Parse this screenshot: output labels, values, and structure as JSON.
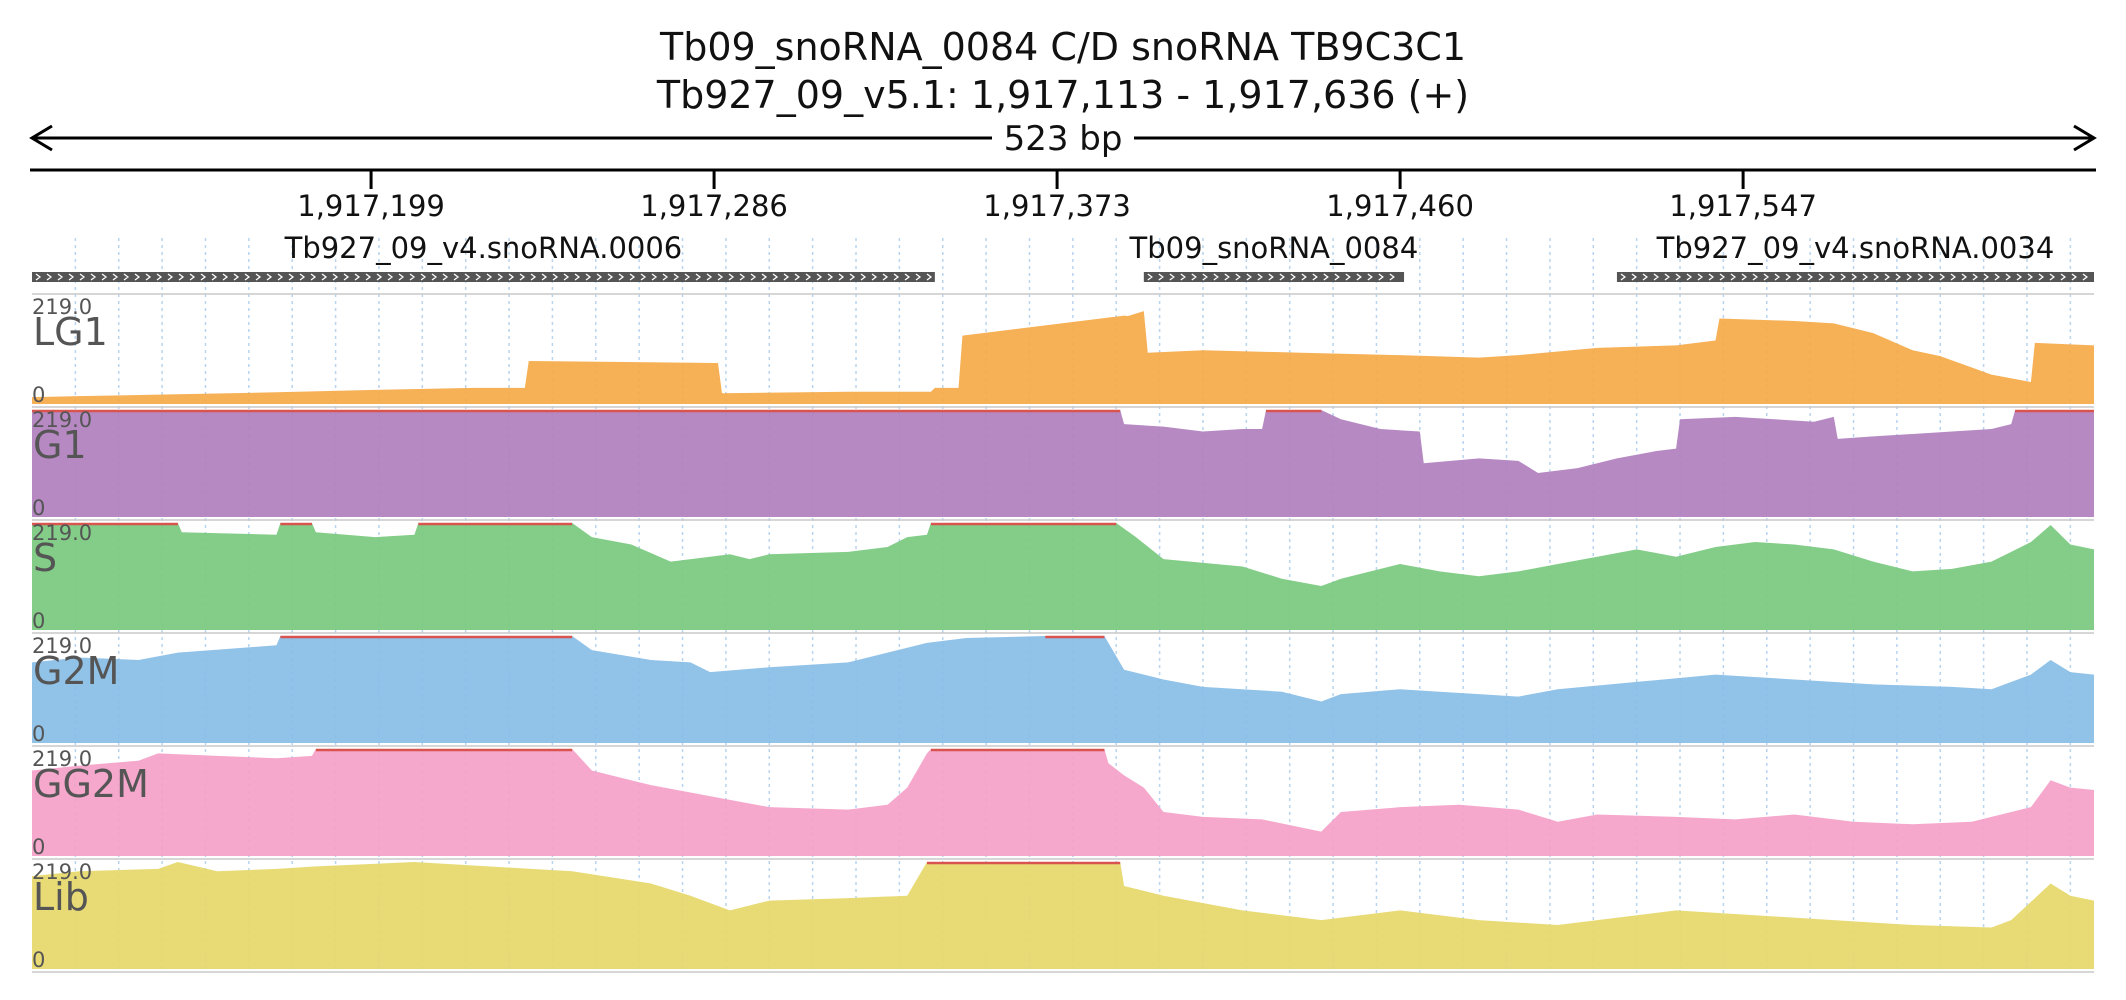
{
  "header": {
    "title_line1": "Tb09_snoRNA_0084  C/D snoRNA  TB9C3C1",
    "title_line2": "Tb927_09_v5.1: 1,917,113 - 1,917,636 (+)",
    "span_label": "523 bp"
  },
  "chart_data": {
    "type": "area",
    "region": {
      "chrom": "Tb927_09_v5.1",
      "start": 1917113,
      "end": 1917636,
      "strand": "+"
    },
    "axis_ticks": [
      {
        "pos": 1917199,
        "label": "1,917,199"
      },
      {
        "pos": 1917286,
        "label": "1,917,286"
      },
      {
        "pos": 1917373,
        "label": "1,917,373"
      },
      {
        "pos": 1917460,
        "label": "1,917,460"
      },
      {
        "pos": 1917547,
        "label": "1,917,547"
      }
    ],
    "features": [
      {
        "name": "Tb927_09_v4.snoRNA.0006",
        "start": 1917113,
        "end": 1917342
      },
      {
        "name": "Tb09_snoRNA_0084",
        "start": 1917395,
        "end": 1917461
      },
      {
        "name": "Tb927_09_v4.snoRNA.0034",
        "start": 1917515,
        "end": 1917636
      }
    ],
    "tracks": [
      {
        "name": "LG1",
        "color": "#f5a947",
        "max": "219.0",
        "min": "0",
        "ymax": 219,
        "points": [
          [
            1917113,
            14
          ],
          [
            1917125,
            16
          ],
          [
            1917150,
            20
          ],
          [
            1917175,
            24
          ],
          [
            1917200,
            29
          ],
          [
            1917225,
            33
          ],
          [
            1917238,
            33
          ],
          [
            1917239,
            88
          ],
          [
            1917287,
            84
          ],
          [
            1917288,
            22
          ],
          [
            1917320,
            25
          ],
          [
            1917341,
            25
          ],
          [
            1917342,
            33
          ],
          [
            1917348,
            33
          ],
          [
            1917349,
            140
          ],
          [
            1917390,
            181
          ],
          [
            1917391,
            180
          ],
          [
            1917395,
            190
          ],
          [
            1917396,
            105
          ],
          [
            1917410,
            110
          ],
          [
            1917435,
            105
          ],
          [
            1917460,
            100
          ],
          [
            1917480,
            95
          ],
          [
            1917490,
            100
          ],
          [
            1917510,
            115
          ],
          [
            1917530,
            120
          ],
          [
            1917540,
            130
          ],
          [
            1917541,
            175
          ],
          [
            1917560,
            170
          ],
          [
            1917570,
            165
          ],
          [
            1917580,
            145
          ],
          [
            1917590,
            110
          ],
          [
            1917597,
            98
          ],
          [
            1917610,
            60
          ],
          [
            1917620,
            45
          ],
          [
            1917621,
            125
          ],
          [
            1917636,
            120
          ]
        ]
      },
      {
        "name": "G1",
        "color": "#b07fbe",
        "max": "219.0",
        "min": "0",
        "ymax": 219,
        "points": [
          [
            1917113,
            219
          ],
          [
            1917389,
            219
          ],
          [
            1917390,
            190
          ],
          [
            1917400,
            185
          ],
          [
            1917410,
            175
          ],
          [
            1917420,
            180
          ],
          [
            1917425,
            180
          ],
          [
            1917426,
            219
          ],
          [
            1917440,
            219
          ],
          [
            1917445,
            200
          ],
          [
            1917450,
            190
          ],
          [
            1917455,
            180
          ],
          [
            1917465,
            175
          ],
          [
            1917466,
            110
          ],
          [
            1917480,
            120
          ],
          [
            1917490,
            115
          ],
          [
            1917495,
            90
          ],
          [
            1917505,
            100
          ],
          [
            1917515,
            120
          ],
          [
            1917525,
            135
          ],
          [
            1917530,
            140
          ],
          [
            1917531,
            200
          ],
          [
            1917545,
            205
          ],
          [
            1917555,
            200
          ],
          [
            1917565,
            195
          ],
          [
            1917570,
            205
          ],
          [
            1917571,
            160
          ],
          [
            1917580,
            165
          ],
          [
            1917590,
            170
          ],
          [
            1917600,
            175
          ],
          [
            1917610,
            180
          ],
          [
            1917615,
            190
          ],
          [
            1917616,
            219
          ],
          [
            1917636,
            219
          ]
        ]
      },
      {
        "name": "S",
        "color": "#78c97e",
        "max": "219.0",
        "min": "0",
        "ymax": 219,
        "points": [
          [
            1917113,
            219
          ],
          [
            1917150,
            219
          ],
          [
            1917151,
            200
          ],
          [
            1917175,
            195
          ],
          [
            1917176,
            219
          ],
          [
            1917184,
            219
          ],
          [
            1917185,
            200
          ],
          [
            1917200,
            190
          ],
          [
            1917210,
            195
          ],
          [
            1917211,
            219
          ],
          [
            1917250,
            219
          ],
          [
            1917255,
            190
          ],
          [
            1917265,
            175
          ],
          [
            1917275,
            140
          ],
          [
            1917285,
            150
          ],
          [
            1917290,
            155
          ],
          [
            1917295,
            145
          ],
          [
            1917300,
            155
          ],
          [
            1917320,
            160
          ],
          [
            1917330,
            170
          ],
          [
            1917335,
            190
          ],
          [
            1917340,
            195
          ],
          [
            1917341,
            219
          ],
          [
            1917388,
            219
          ],
          [
            1917393,
            190
          ],
          [
            1917400,
            145
          ],
          [
            1917420,
            130
          ],
          [
            1917430,
            105
          ],
          [
            1917440,
            90
          ],
          [
            1917445,
            105
          ],
          [
            1917460,
            135
          ],
          [
            1917470,
            120
          ],
          [
            1917480,
            110
          ],
          [
            1917490,
            120
          ],
          [
            1917500,
            135
          ],
          [
            1917510,
            150
          ],
          [
            1917520,
            165
          ],
          [
            1917530,
            150
          ],
          [
            1917540,
            170
          ],
          [
            1917550,
            180
          ],
          [
            1917560,
            175
          ],
          [
            1917570,
            165
          ],
          [
            1917580,
            140
          ],
          [
            1917590,
            120
          ],
          [
            1917600,
            125
          ],
          [
            1917610,
            140
          ],
          [
            1917615,
            160
          ],
          [
            1917620,
            180
          ],
          [
            1917625,
            215
          ],
          [
            1917630,
            175
          ],
          [
            1917636,
            165
          ]
        ]
      },
      {
        "name": "G2M",
        "color": "#88bde6",
        "max": "219.0",
        "min": "0",
        "ymax": 219,
        "points": [
          [
            1917113,
            165
          ],
          [
            1917125,
            175
          ],
          [
            1917140,
            170
          ],
          [
            1917150,
            185
          ],
          [
            1917175,
            200
          ],
          [
            1917176,
            219
          ],
          [
            1917250,
            219
          ],
          [
            1917255,
            190
          ],
          [
            1917270,
            170
          ],
          [
            1917280,
            165
          ],
          [
            1917285,
            145
          ],
          [
            1917300,
            155
          ],
          [
            1917320,
            165
          ],
          [
            1917330,
            185
          ],
          [
            1917340,
            205
          ],
          [
            1917350,
            215
          ],
          [
            1917370,
            219
          ],
          [
            1917385,
            219
          ],
          [
            1917390,
            150
          ],
          [
            1917400,
            130
          ],
          [
            1917410,
            115
          ],
          [
            1917430,
            105
          ],
          [
            1917440,
            85
          ],
          [
            1917445,
            100
          ],
          [
            1917460,
            110
          ],
          [
            1917470,
            105
          ],
          [
            1917480,
            100
          ],
          [
            1917490,
            95
          ],
          [
            1917500,
            110
          ],
          [
            1917520,
            125
          ],
          [
            1917540,
            140
          ],
          [
            1917560,
            130
          ],
          [
            1917580,
            120
          ],
          [
            1917600,
            115
          ],
          [
            1917610,
            110
          ],
          [
            1917620,
            140
          ],
          [
            1917625,
            170
          ],
          [
            1917630,
            145
          ],
          [
            1917636,
            140
          ]
        ]
      },
      {
        "name": "GG2M",
        "color": "#f49fc8",
        "max": "219.0",
        "min": "0",
        "ymax": 219,
        "points": [
          [
            1917113,
            175
          ],
          [
            1917125,
            185
          ],
          [
            1917140,
            195
          ],
          [
            1917145,
            210
          ],
          [
            1917160,
            205
          ],
          [
            1917175,
            200
          ],
          [
            1917184,
            205
          ],
          [
            1917185,
            219
          ],
          [
            1917250,
            219
          ],
          [
            1917255,
            175
          ],
          [
            1917270,
            145
          ],
          [
            1917280,
            130
          ],
          [
            1917290,
            115
          ],
          [
            1917300,
            100
          ],
          [
            1917320,
            95
          ],
          [
            1917330,
            105
          ],
          [
            1917335,
            140
          ],
          [
            1917340,
            210
          ],
          [
            1917341,
            219
          ],
          [
            1917385,
            219
          ],
          [
            1917386,
            190
          ],
          [
            1917390,
            165
          ],
          [
            1917395,
            140
          ],
          [
            1917400,
            90
          ],
          [
            1917410,
            80
          ],
          [
            1917425,
            75
          ],
          [
            1917440,
            50
          ],
          [
            1917445,
            90
          ],
          [
            1917460,
            100
          ],
          [
            1917475,
            105
          ],
          [
            1917490,
            95
          ],
          [
            1917500,
            70
          ],
          [
            1917510,
            85
          ],
          [
            1917530,
            80
          ],
          [
            1917545,
            75
          ],
          [
            1917560,
            85
          ],
          [
            1917575,
            70
          ],
          [
            1917590,
            65
          ],
          [
            1917605,
            70
          ],
          [
            1917620,
            100
          ],
          [
            1917625,
            155
          ],
          [
            1917630,
            140
          ],
          [
            1917636,
            135
          ]
        ]
      },
      {
        "name": "Lib",
        "color": "#e6d86a",
        "max": "219.0",
        "min": "0",
        "ymax": 219,
        "points": [
          [
            1917113,
            190
          ],
          [
            1917125,
            200
          ],
          [
            1917145,
            205
          ],
          [
            1917150,
            219
          ],
          [
            1917160,
            200
          ],
          [
            1917175,
            205
          ],
          [
            1917185,
            210
          ],
          [
            1917210,
            219
          ],
          [
            1917250,
            200
          ],
          [
            1917270,
            175
          ],
          [
            1917280,
            150
          ],
          [
            1917290,
            120
          ],
          [
            1917300,
            140
          ],
          [
            1917320,
            145
          ],
          [
            1917335,
            150
          ],
          [
            1917340,
            219
          ],
          [
            1917389,
            219
          ],
          [
            1917390,
            170
          ],
          [
            1917400,
            150
          ],
          [
            1917420,
            120
          ],
          [
            1917440,
            100
          ],
          [
            1917460,
            120
          ],
          [
            1917470,
            110
          ],
          [
            1917480,
            100
          ],
          [
            1917490,
            95
          ],
          [
            1917500,
            90
          ],
          [
            1917510,
            100
          ],
          [
            1917530,
            120
          ],
          [
            1917550,
            110
          ],
          [
            1917570,
            100
          ],
          [
            1917590,
            90
          ],
          [
            1917610,
            85
          ],
          [
            1917615,
            100
          ],
          [
            1917625,
            175
          ],
          [
            1917630,
            150
          ],
          [
            1917636,
            140
          ]
        ]
      }
    ]
  }
}
